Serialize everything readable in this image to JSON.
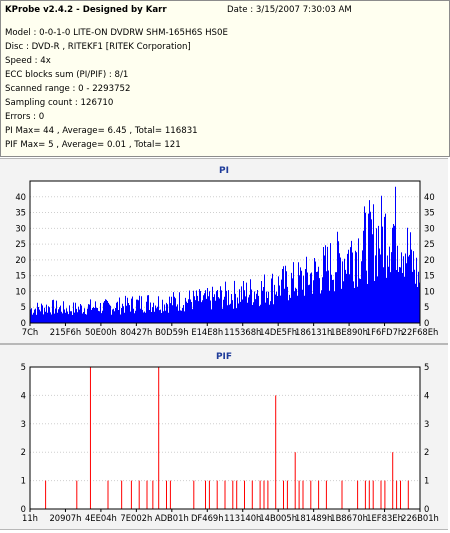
{
  "info": {
    "title": "KProbe v2.4.2 - Designed by Karr",
    "date": "Date : 3/15/2007 7:30:03 AM",
    "lines": [
      "Model : 0-0-1-0 LITE-ON DVDRW SHM-165H6S HS0E",
      "Disc : DVD-R , RITEKF1 [RITEK Corporation]",
      "Speed : 4x",
      "ECC blocks sum (PI/PIF) : 8/1",
      "Scanned range : 0 - 2293752",
      "Sampling count : 126710",
      "Errors : 0",
      "PI Max= 44 , Average= 6.45 , Total= 116831",
      "PIF Max= 5 , Average= 0.01 , Total= 121"
    ]
  },
  "colors": {
    "pi": "#0000ff",
    "pif": "#ff0000",
    "title": "#1f3c9a"
  },
  "chart_data": [
    {
      "type": "area",
      "title": "PI",
      "ylim": [
        0,
        45
      ],
      "yticks": [
        0,
        5,
        10,
        15,
        20,
        25,
        30,
        35,
        40
      ],
      "xtick_labels": [
        "7Ch",
        "215F6h",
        "50E00h",
        "80427h",
        "B0D59h",
        "E14E8h",
        "115368h",
        "14DE5Fh",
        "186131h",
        "1BE890h",
        "1F6FD7h",
        "22F68Eh"
      ],
      "envelope": [
        {
          "x": 0.0,
          "y": 6
        },
        {
          "x": 0.05,
          "y": 7
        },
        {
          "x": 0.1,
          "y": 6
        },
        {
          "x": 0.15,
          "y": 7
        },
        {
          "x": 0.2,
          "y": 7
        },
        {
          "x": 0.25,
          "y": 8
        },
        {
          "x": 0.3,
          "y": 9
        },
        {
          "x": 0.35,
          "y": 9
        },
        {
          "x": 0.4,
          "y": 10
        },
        {
          "x": 0.45,
          "y": 10
        },
        {
          "x": 0.5,
          "y": 12
        },
        {
          "x": 0.55,
          "y": 13
        },
        {
          "x": 0.6,
          "y": 15
        },
        {
          "x": 0.65,
          "y": 17
        },
        {
          "x": 0.7,
          "y": 19
        },
        {
          "x": 0.75,
          "y": 23
        },
        {
          "x": 0.8,
          "y": 28
        },
        {
          "x": 0.85,
          "y": 34
        },
        {
          "x": 0.9,
          "y": 38
        },
        {
          "x": 0.93,
          "y": 42
        },
        {
          "x": 0.95,
          "y": 38
        },
        {
          "x": 0.97,
          "y": 30
        },
        {
          "x": 1.0,
          "y": 18
        }
      ]
    },
    {
      "type": "bar",
      "title": "PIF",
      "ylim": [
        0,
        5
      ],
      "yticks": [
        0,
        1,
        2,
        3,
        4,
        5
      ],
      "xtick_labels": [
        "11h",
        "20907h",
        "4EE04h",
        "7E002h",
        "ADB01h",
        "DF469h",
        "113140h",
        "14B005h",
        "181489h",
        "1B8670h",
        "1EF83Eh",
        "226B01h"
      ],
      "spikes": [
        {
          "x": 0.04,
          "y": 1
        },
        {
          "x": 0.12,
          "y": 1
        },
        {
          "x": 0.155,
          "y": 5
        },
        {
          "x": 0.2,
          "y": 1
        },
        {
          "x": 0.235,
          "y": 1
        },
        {
          "x": 0.26,
          "y": 1
        },
        {
          "x": 0.28,
          "y": 1
        },
        {
          "x": 0.3,
          "y": 1
        },
        {
          "x": 0.315,
          "y": 1
        },
        {
          "x": 0.33,
          "y": 5
        },
        {
          "x": 0.35,
          "y": 1
        },
        {
          "x": 0.36,
          "y": 1
        },
        {
          "x": 0.42,
          "y": 1
        },
        {
          "x": 0.45,
          "y": 1
        },
        {
          "x": 0.46,
          "y": 1
        },
        {
          "x": 0.48,
          "y": 1
        },
        {
          "x": 0.5,
          "y": 1
        },
        {
          "x": 0.52,
          "y": 1
        },
        {
          "x": 0.53,
          "y": 1
        },
        {
          "x": 0.55,
          "y": 1
        },
        {
          "x": 0.57,
          "y": 1
        },
        {
          "x": 0.59,
          "y": 1
        },
        {
          "x": 0.6,
          "y": 1
        },
        {
          "x": 0.61,
          "y": 1
        },
        {
          "x": 0.63,
          "y": 4
        },
        {
          "x": 0.65,
          "y": 1
        },
        {
          "x": 0.66,
          "y": 1
        },
        {
          "x": 0.68,
          "y": 2
        },
        {
          "x": 0.69,
          "y": 1
        },
        {
          "x": 0.7,
          "y": 1
        },
        {
          "x": 0.72,
          "y": 1
        },
        {
          "x": 0.74,
          "y": 1
        },
        {
          "x": 0.76,
          "y": 1
        },
        {
          "x": 0.8,
          "y": 1
        },
        {
          "x": 0.84,
          "y": 1
        },
        {
          "x": 0.86,
          "y": 1
        },
        {
          "x": 0.87,
          "y": 1
        },
        {
          "x": 0.88,
          "y": 1
        },
        {
          "x": 0.9,
          "y": 1
        },
        {
          "x": 0.91,
          "y": 1
        },
        {
          "x": 0.93,
          "y": 2
        },
        {
          "x": 0.94,
          "y": 1
        },
        {
          "x": 0.95,
          "y": 1
        },
        {
          "x": 0.97,
          "y": 1
        }
      ]
    }
  ]
}
